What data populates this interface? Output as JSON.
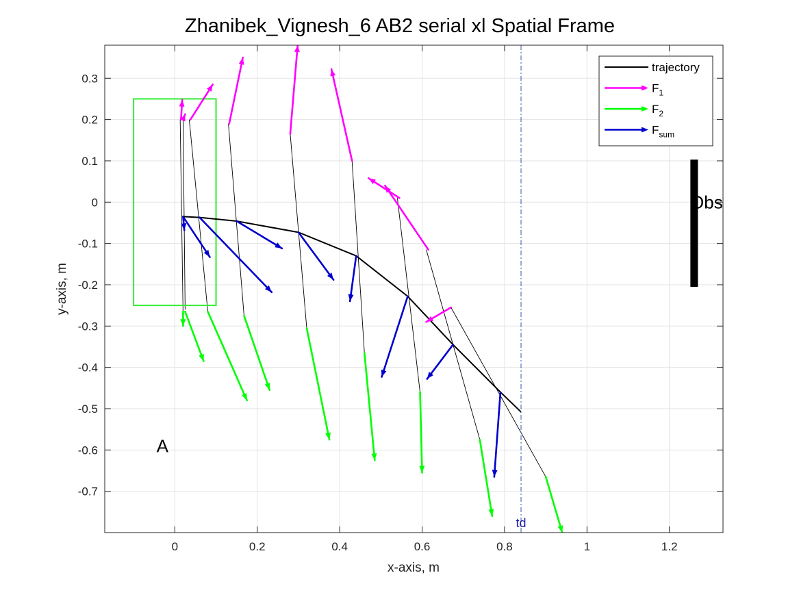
{
  "chart_data": {
    "type": "line",
    "title": "Zhanibek_Vignesh_6    AB2    serial    xl  Spatial Frame",
    "xlabel": "x-axis, m",
    "ylabel": "y-axis, m",
    "xlim": [
      -0.17,
      1.33
    ],
    "ylim": [
      -0.8,
      0.38
    ],
    "xticks": [
      0,
      0.2,
      0.4,
      0.6,
      0.8,
      1,
      1.2
    ],
    "xtick_labels": [
      "0",
      "0.2",
      "0.4",
      "0.6",
      "0.8",
      "1",
      "1.2"
    ],
    "yticks": [
      -0.7,
      -0.6,
      -0.5,
      -0.4,
      -0.3,
      -0.2,
      -0.1,
      0,
      0.1,
      0.2,
      0.3
    ],
    "ytick_labels": [
      "-0.7",
      "-0.6",
      "-0.5",
      "-0.4",
      "-0.3",
      "-0.2",
      "-0.1",
      "0",
      "0.1",
      "0.2",
      "0.3"
    ],
    "grid": true,
    "legend": {
      "placement": "top-right",
      "entries": [
        {
          "label": "trajectory",
          "sub": "",
          "color": "#000000",
          "style": "line"
        },
        {
          "label": "F",
          "sub": "1",
          "color": "#ff00ff",
          "style": "arrow"
        },
        {
          "label": "F",
          "sub": "2",
          "color": "#00ff00",
          "style": "arrow"
        },
        {
          "label": "F",
          "sub": "sum",
          "color": "#0000cc",
          "style": "arrow"
        }
      ]
    },
    "colors": {
      "trajectory": "#000000",
      "f1": "#ff00ff",
      "f2": "#00ff00",
      "fsum": "#0000cc",
      "box": "#33ee33",
      "td": "#3355aa",
      "obstacle": "#000000"
    },
    "trajectory": {
      "x": [
        0.02,
        0.06,
        0.15,
        0.3,
        0.44,
        0.565,
        0.675,
        0.79,
        0.84
      ],
      "y": [
        -0.035,
        -0.037,
        -0.046,
        -0.073,
        -0.13,
        -0.228,
        -0.345,
        -0.46,
        -0.508
      ]
    },
    "rods": [
      {
        "f1": [
          0.013,
          0.2
        ],
        "f2": [
          0.02,
          -0.27
        ]
      },
      {
        "f1": [
          0.02,
          0.2
        ],
        "f2": [
          0.025,
          -0.26
        ]
      },
      {
        "f1": [
          0.035,
          0.2
        ],
        "f2": [
          0.08,
          -0.265
        ]
      },
      {
        "f1": [
          0.13,
          0.19
        ],
        "f2": [
          0.168,
          -0.275
        ]
      },
      {
        "f1": [
          0.28,
          0.165
        ],
        "f2": [
          0.32,
          -0.305
        ]
      },
      {
        "f1": [
          0.43,
          0.1
        ],
        "f2": [
          0.46,
          -0.365
        ]
      },
      {
        "f1": [
          0.54,
          0.01
        ],
        "f2": [
          0.595,
          -0.46
        ]
      },
      {
        "f1": [
          0.61,
          -0.115
        ],
        "f2": [
          0.74,
          -0.575
        ]
      },
      {
        "f1": [
          0.67,
          -0.255
        ],
        "f2": [
          0.9,
          -0.665
        ]
      }
    ],
    "f1_arrows": [
      {
        "from": [
          0.015,
          0.2
        ],
        "to": [
          0.018,
          0.248
        ]
      },
      {
        "from": [
          0.02,
          0.2
        ],
        "to": [
          0.025,
          0.213
        ]
      },
      {
        "from": [
          0.038,
          0.2
        ],
        "to": [
          0.092,
          0.285
        ]
      },
      {
        "from": [
          0.132,
          0.19
        ],
        "to": [
          0.165,
          0.35
        ]
      },
      {
        "from": [
          0.28,
          0.165
        ],
        "to": [
          0.298,
          0.38
        ]
      },
      {
        "from": [
          0.43,
          0.1
        ],
        "to": [
          0.38,
          0.322
        ]
      },
      {
        "from": [
          0.545,
          0.01
        ],
        "to": [
          0.47,
          0.058
        ]
      },
      {
        "from": [
          0.615,
          -0.115
        ],
        "to": [
          0.51,
          0.04
        ]
      },
      {
        "from": [
          0.67,
          -0.255
        ],
        "to": [
          0.61,
          -0.29
        ]
      }
    ],
    "f2_arrows": [
      {
        "from": [
          0.02,
          -0.265
        ],
        "to": [
          0.02,
          -0.3
        ]
      },
      {
        "from": [
          0.025,
          -0.265
        ],
        "to": [
          0.07,
          -0.385
        ]
      },
      {
        "from": [
          0.08,
          -0.265
        ],
        "to": [
          0.175,
          -0.48
        ]
      },
      {
        "from": [
          0.168,
          -0.275
        ],
        "to": [
          0.23,
          -0.455
        ]
      },
      {
        "from": [
          0.32,
          -0.305
        ],
        "to": [
          0.375,
          -0.575
        ]
      },
      {
        "from": [
          0.46,
          -0.365
        ],
        "to": [
          0.485,
          -0.625
        ]
      },
      {
        "from": [
          0.595,
          -0.46
        ],
        "to": [
          0.6,
          -0.655
        ]
      },
      {
        "from": [
          0.74,
          -0.575
        ],
        "to": [
          0.77,
          -0.76
        ]
      },
      {
        "from": [
          0.9,
          -0.665
        ],
        "to": [
          0.94,
          -0.8
        ]
      }
    ],
    "fsum_arrows": [
      {
        "from": [
          0.02,
          -0.035
        ],
        "to": [
          0.023,
          -0.068
        ]
      },
      {
        "from": [
          0.02,
          -0.035
        ],
        "to": [
          0.085,
          -0.133
        ]
      },
      {
        "from": [
          0.06,
          -0.037
        ],
        "to": [
          0.235,
          -0.218
        ]
      },
      {
        "from": [
          0.15,
          -0.046
        ],
        "to": [
          0.26,
          -0.112
        ]
      },
      {
        "from": [
          0.3,
          -0.073
        ],
        "to": [
          0.385,
          -0.188
        ]
      },
      {
        "from": [
          0.44,
          -0.13
        ],
        "to": [
          0.425,
          -0.24
        ]
      },
      {
        "from": [
          0.565,
          -0.228
        ],
        "to": [
          0.502,
          -0.423
        ]
      },
      {
        "from": [
          0.675,
          -0.345
        ],
        "to": [
          0.612,
          -0.428
        ]
      },
      {
        "from": [
          0.79,
          -0.46
        ],
        "to": [
          0.775,
          -0.665
        ]
      }
    ],
    "box": {
      "x0": -0.1,
      "x1": 0.1,
      "y0": -0.25,
      "y1": 0.25
    },
    "td": {
      "x": 0.84,
      "label": "td"
    },
    "obstacle": {
      "x": 1.26,
      "y0": -0.205,
      "y1": 0.103,
      "label": "Obs"
    },
    "annotations": [
      {
        "text": "A",
        "x": -0.03,
        "y": -0.605
      }
    ]
  }
}
